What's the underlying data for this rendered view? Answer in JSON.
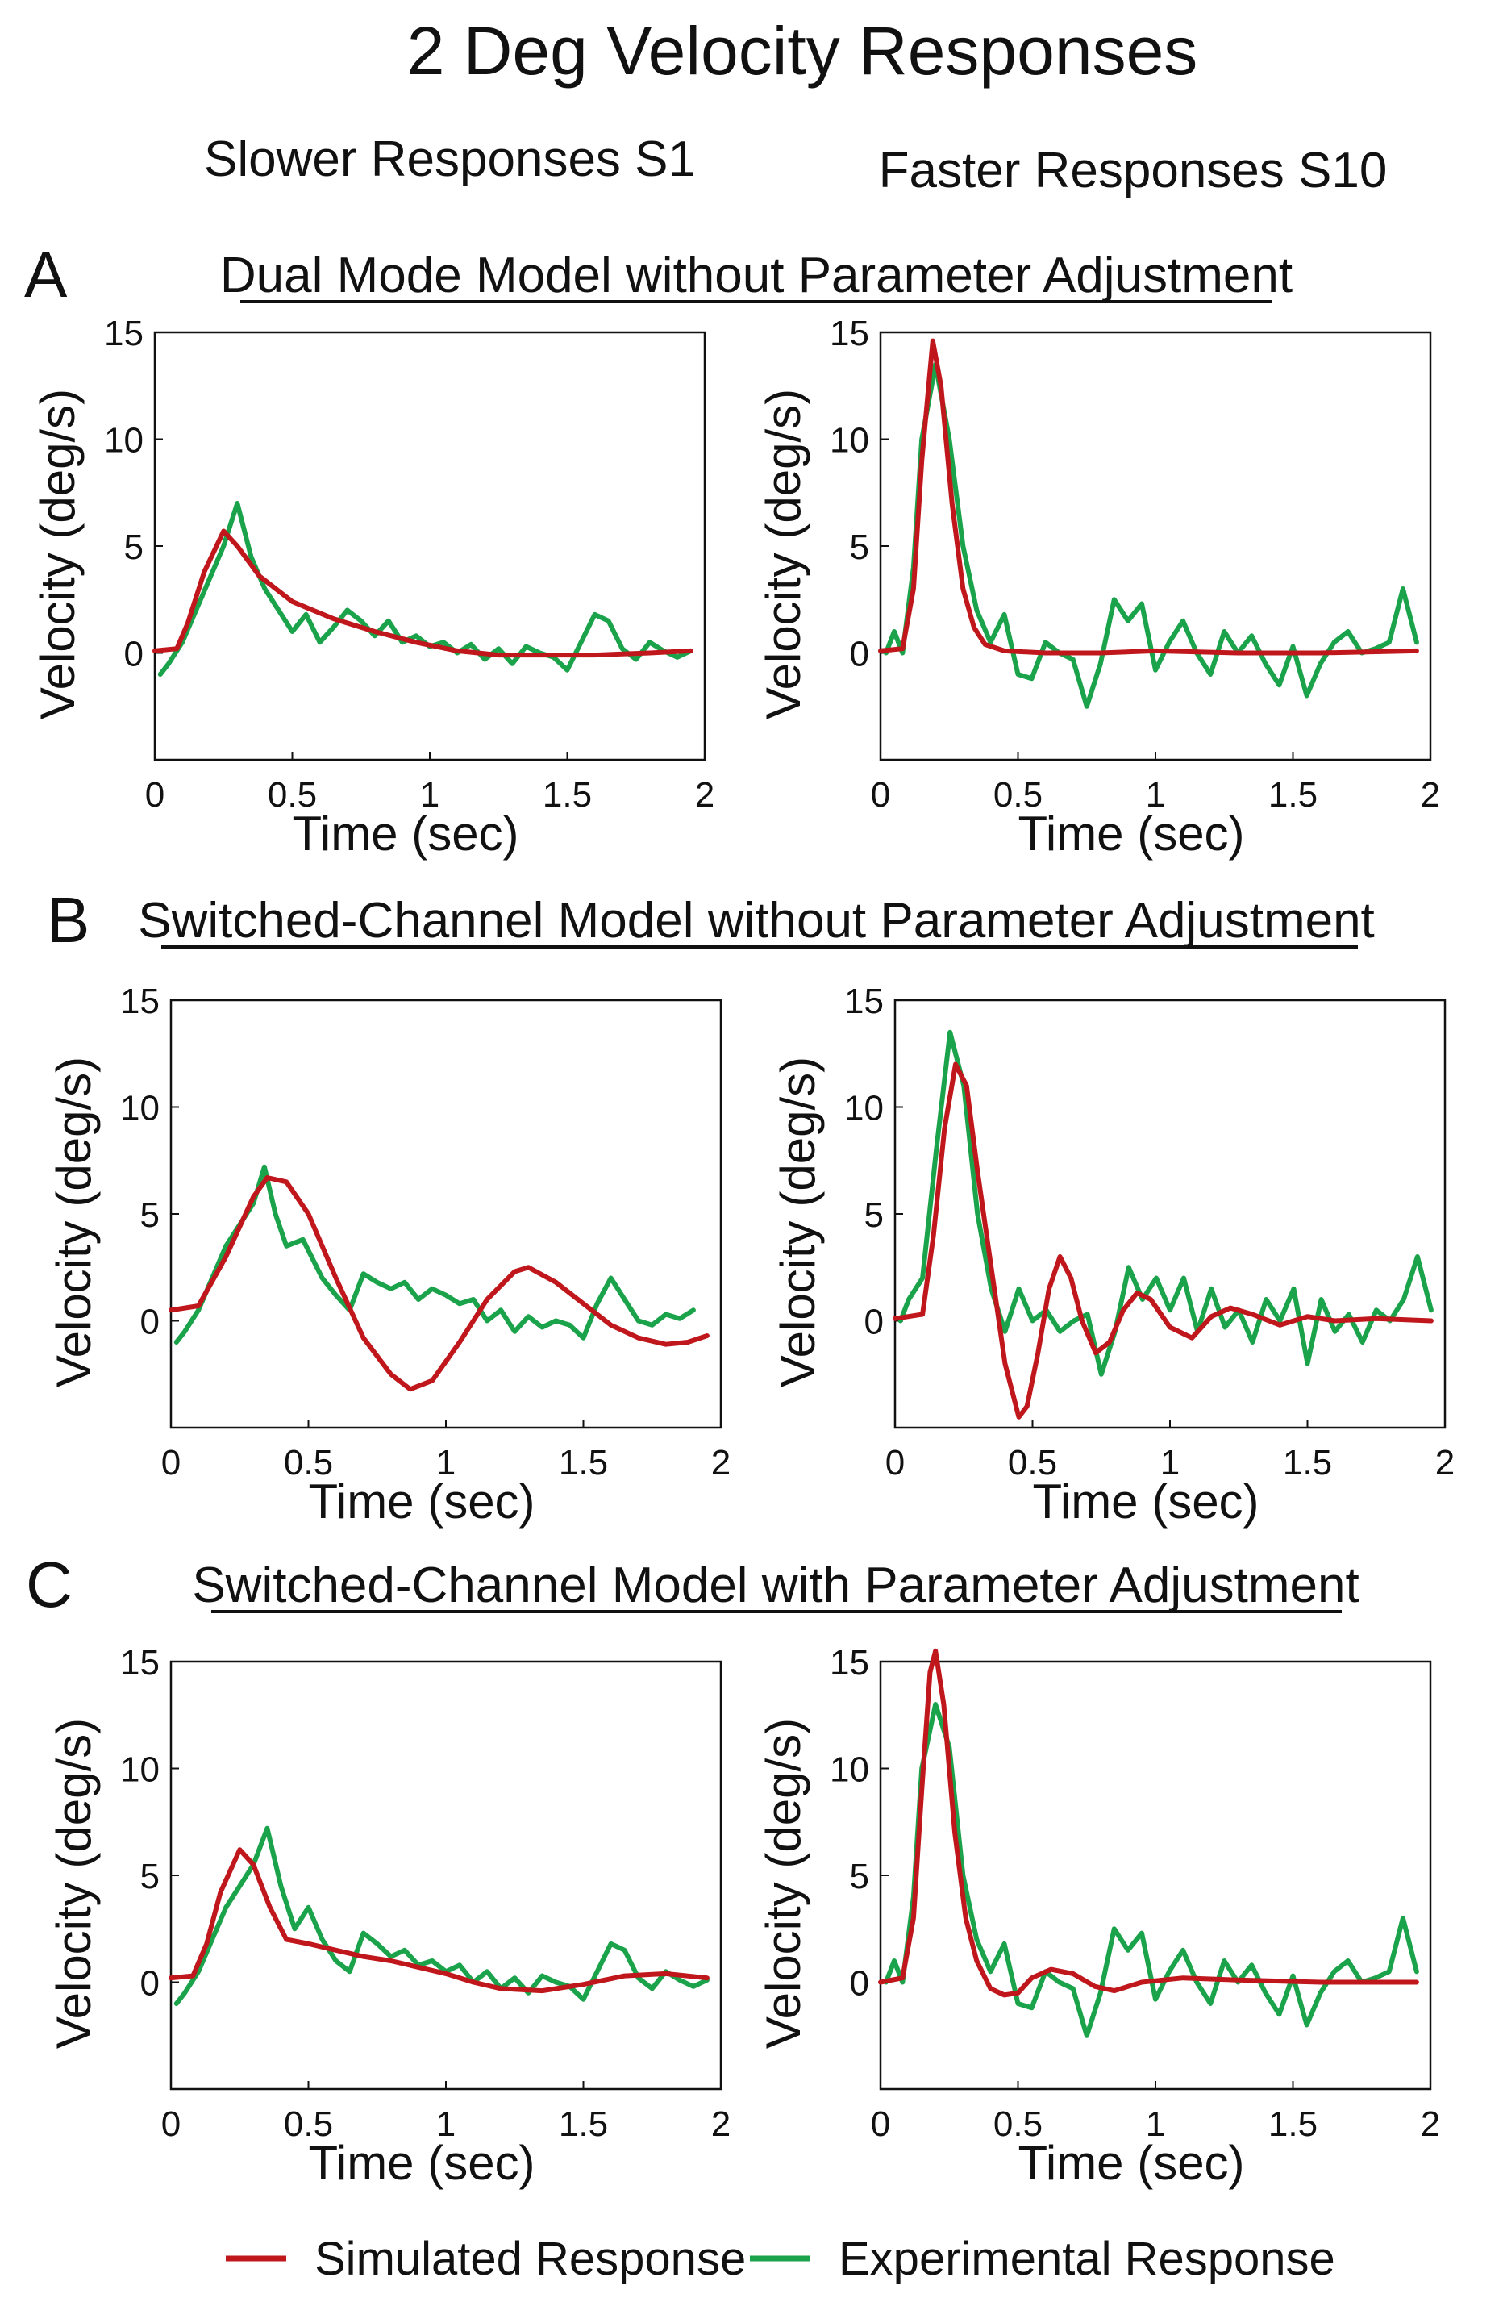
{
  "figure": {
    "title": "2 Deg Velocity Responses",
    "column_titles": [
      "Slower Responses S1",
      "Faster Responses S10"
    ],
    "legend": [
      {
        "label": "Simulated Response",
        "color": "#c0171c"
      },
      {
        "label": "Experimental Response",
        "color": "#1aa34a"
      }
    ]
  },
  "panels": [
    {
      "letter": "A",
      "title": "Dual Mode Model without Parameter Adjustment"
    },
    {
      "letter": "B",
      "title": "Switched-Channel  Model without Parameter Adjustment"
    },
    {
      "letter": "C",
      "title": "Switched-Channel  Model with Parameter Adjustment"
    }
  ],
  "chart_data": [
    {
      "type": "line",
      "panel": "A",
      "subject": "S1",
      "xlabel": "Time (sec)",
      "ylabel": "Velocity (deg/s)",
      "xlim": [
        0,
        2
      ],
      "ylim": [
        -5,
        15
      ],
      "xticks": [
        0,
        0.5,
        1,
        1.5,
        2
      ],
      "xtick_labels": [
        "0",
        "0.5",
        "1",
        "1.5",
        "2"
      ],
      "yticks": [
        0,
        5,
        10,
        15
      ],
      "ytick_labels": [
        "0",
        "5",
        "10",
        "15"
      ],
      "series": [
        {
          "name": "Simulated Response",
          "color": "#c0171c",
          "x": [
            0,
            0.08,
            0.12,
            0.18,
            0.25,
            0.3,
            0.38,
            0.5,
            0.65,
            0.8,
            0.95,
            1.1,
            1.25,
            1.4,
            1.6,
            1.8,
            1.95
          ],
          "y": [
            0.1,
            0.2,
            1.4,
            3.8,
            5.7,
            5.0,
            3.6,
            2.4,
            1.6,
            1.0,
            0.5,
            0.1,
            -0.1,
            -0.1,
            -0.1,
            0.0,
            0.1
          ]
        },
        {
          "name": "Experimental Response",
          "color": "#1aa34a",
          "x": [
            0.02,
            0.05,
            0.1,
            0.15,
            0.2,
            0.25,
            0.3,
            0.35,
            0.4,
            0.45,
            0.5,
            0.55,
            0.6,
            0.65,
            0.7,
            0.75,
            0.8,
            0.85,
            0.9,
            0.95,
            1.0,
            1.05,
            1.1,
            1.15,
            1.2,
            1.25,
            1.3,
            1.35,
            1.4,
            1.45,
            1.5,
            1.55,
            1.6,
            1.65,
            1.7,
            1.75,
            1.8,
            1.85,
            1.9,
            1.95
          ],
          "y": [
            -1.0,
            -0.5,
            0.5,
            2.0,
            3.5,
            5.0,
            7.0,
            4.5,
            3.0,
            2.0,
            1.0,
            1.8,
            0.5,
            1.2,
            2.0,
            1.5,
            0.8,
            1.5,
            0.5,
            0.8,
            0.3,
            0.5,
            0.0,
            0.4,
            -0.3,
            0.2,
            -0.5,
            0.3,
            0.0,
            -0.2,
            -0.8,
            0.5,
            1.8,
            1.5,
            0.2,
            -0.3,
            0.5,
            0.1,
            -0.2,
            0.1
          ]
        }
      ]
    },
    {
      "type": "line",
      "panel": "A",
      "subject": "S10",
      "xlabel": "Time (sec)",
      "ylabel": "Velocity (deg/s)",
      "xlim": [
        0,
        2
      ],
      "ylim": [
        -5,
        15
      ],
      "xticks": [
        0,
        0.5,
        1,
        1.5,
        2
      ],
      "xtick_labels": [
        "0",
        "0.5",
        "1",
        "1.5",
        "2"
      ],
      "yticks": [
        0,
        5,
        10,
        15
      ],
      "ytick_labels": [
        "0",
        "5",
        "10",
        "15"
      ],
      "series": [
        {
          "name": "Simulated Response",
          "color": "#c0171c",
          "x": [
            0,
            0.08,
            0.12,
            0.15,
            0.19,
            0.22,
            0.26,
            0.3,
            0.34,
            0.38,
            0.45,
            0.6,
            0.8,
            1.0,
            1.3,
            1.6,
            1.95
          ],
          "y": [
            0.1,
            0.2,
            3.0,
            9.0,
            14.6,
            12.5,
            7.0,
            3.0,
            1.2,
            0.4,
            0.1,
            0.0,
            0.0,
            0.1,
            0.0,
            0.0,
            0.1
          ]
        },
        {
          "name": "Experimental Response",
          "color": "#1aa34a",
          "x": [
            0.02,
            0.05,
            0.08,
            0.12,
            0.15,
            0.2,
            0.25,
            0.3,
            0.35,
            0.4,
            0.45,
            0.5,
            0.55,
            0.6,
            0.65,
            0.7,
            0.75,
            0.8,
            0.85,
            0.9,
            0.95,
            1.0,
            1.05,
            1.1,
            1.15,
            1.2,
            1.25,
            1.3,
            1.35,
            1.4,
            1.45,
            1.5,
            1.55,
            1.6,
            1.65,
            1.7,
            1.75,
            1.8,
            1.85,
            1.9,
            1.95
          ],
          "y": [
            0.0,
            1.0,
            0.0,
            4.0,
            10.0,
            13.5,
            10.0,
            5.0,
            2.0,
            0.5,
            1.8,
            -1.0,
            -1.2,
            0.5,
            0.0,
            -0.3,
            -2.5,
            -0.5,
            2.5,
            1.5,
            2.3,
            -0.8,
            0.5,
            1.5,
            0.0,
            -1.0,
            1.0,
            0.0,
            0.8,
            -0.5,
            -1.5,
            0.3,
            -2.0,
            -0.5,
            0.5,
            1.0,
            0.0,
            0.2,
            0.5,
            3.0,
            0.5
          ]
        }
      ]
    },
    {
      "type": "line",
      "panel": "B",
      "subject": "S1",
      "xlabel": "Time (sec)",
      "ylabel": "Velocity (deg/s)",
      "xlim": [
        0,
        2
      ],
      "ylim": [
        -5,
        15
      ],
      "xticks": [
        0,
        0.5,
        1,
        1.5,
        2
      ],
      "xtick_labels": [
        "0",
        "0.5",
        "1",
        "1.5",
        "2"
      ],
      "yticks": [
        0,
        5,
        10,
        15
      ],
      "ytick_labels": [
        "0",
        "5",
        "10",
        "15"
      ],
      "series": [
        {
          "name": "Simulated Response",
          "color": "#c0171c",
          "x": [
            0,
            0.1,
            0.2,
            0.3,
            0.35,
            0.42,
            0.5,
            0.6,
            0.7,
            0.8,
            0.87,
            0.95,
            1.05,
            1.15,
            1.25,
            1.3,
            1.4,
            1.5,
            1.6,
            1.7,
            1.8,
            1.88,
            1.95
          ],
          "y": [
            0.5,
            0.7,
            3.0,
            5.8,
            6.7,
            6.5,
            5.0,
            2.0,
            -0.8,
            -2.5,
            -3.2,
            -2.8,
            -1.0,
            1.0,
            2.3,
            2.5,
            1.8,
            0.8,
            -0.2,
            -0.8,
            -1.1,
            -1.0,
            -0.7
          ]
        },
        {
          "name": "Experimental Response",
          "color": "#1aa34a",
          "x": [
            0.02,
            0.05,
            0.1,
            0.15,
            0.2,
            0.25,
            0.3,
            0.34,
            0.38,
            0.42,
            0.48,
            0.55,
            0.6,
            0.65,
            0.7,
            0.75,
            0.8,
            0.85,
            0.9,
            0.95,
            1.0,
            1.05,
            1.1,
            1.15,
            1.2,
            1.25,
            1.3,
            1.35,
            1.4,
            1.45,
            1.5,
            1.55,
            1.6,
            1.65,
            1.7,
            1.75,
            1.8,
            1.85,
            1.9
          ],
          "y": [
            -1.0,
            -0.5,
            0.5,
            2.0,
            3.5,
            4.5,
            5.5,
            7.2,
            5.0,
            3.5,
            3.8,
            2.0,
            1.2,
            0.5,
            2.2,
            1.8,
            1.5,
            1.8,
            1.0,
            1.5,
            1.2,
            0.8,
            1.0,
            0.0,
            0.5,
            -0.5,
            0.2,
            -0.3,
            0.0,
            -0.2,
            -0.8,
            0.8,
            2.0,
            1.0,
            0.0,
            -0.2,
            0.3,
            0.1,
            0.5
          ]
        }
      ]
    },
    {
      "type": "line",
      "panel": "B",
      "subject": "S10",
      "xlabel": "Time (sec)",
      "ylabel": "Velocity (deg/s)",
      "xlim": [
        0,
        2
      ],
      "ylim": [
        -5,
        15
      ],
      "xticks": [
        0,
        0.5,
        1,
        1.5,
        2
      ],
      "xtick_labels": [
        "0",
        "0.5",
        "1",
        "1.5",
        "2"
      ],
      "yticks": [
        0,
        5,
        10,
        15
      ],
      "ytick_labels": [
        "0",
        "5",
        "10",
        "15"
      ],
      "series": [
        {
          "name": "Simulated Response",
          "color": "#c0171c",
          "x": [
            0,
            0.1,
            0.14,
            0.18,
            0.22,
            0.26,
            0.3,
            0.35,
            0.4,
            0.45,
            0.48,
            0.52,
            0.56,
            0.6,
            0.64,
            0.68,
            0.73,
            0.78,
            0.83,
            0.88,
            0.93,
            1.0,
            1.08,
            1.15,
            1.22,
            1.3,
            1.4,
            1.5,
            1.6,
            1.75,
            1.95
          ],
          "y": [
            0.1,
            0.3,
            4.0,
            9.0,
            12.0,
            11.0,
            7.0,
            2.5,
            -2.0,
            -4.5,
            -4.0,
            -1.5,
            1.5,
            3.0,
            2.0,
            0.0,
            -1.5,
            -1.0,
            0.5,
            1.3,
            1.0,
            -0.3,
            -0.8,
            0.2,
            0.6,
            0.3,
            -0.2,
            0.2,
            0.0,
            0.1,
            0.0
          ]
        },
        {
          "name": "Experimental Response",
          "color": "#1aa34a",
          "x": [
            0.02,
            0.05,
            0.1,
            0.15,
            0.2,
            0.25,
            0.3,
            0.35,
            0.4,
            0.45,
            0.5,
            0.55,
            0.6,
            0.65,
            0.7,
            0.75,
            0.8,
            0.85,
            0.9,
            0.95,
            1.0,
            1.05,
            1.1,
            1.15,
            1.2,
            1.25,
            1.3,
            1.35,
            1.4,
            1.45,
            1.5,
            1.55,
            1.6,
            1.65,
            1.7,
            1.75,
            1.8,
            1.85,
            1.9,
            1.95
          ],
          "y": [
            0.0,
            1.0,
            2.0,
            8.0,
            13.5,
            11.0,
            5.0,
            1.5,
            -0.5,
            1.5,
            0.0,
            0.5,
            -0.5,
            0.0,
            0.3,
            -2.5,
            -0.5,
            2.5,
            1.0,
            2.0,
            0.5,
            2.0,
            -0.5,
            1.5,
            -0.3,
            0.5,
            -1.0,
            1.0,
            0.0,
            1.5,
            -2.0,
            1.0,
            -0.5,
            0.3,
            -1.0,
            0.5,
            0.0,
            1.0,
            3.0,
            0.5
          ]
        }
      ]
    },
    {
      "type": "line",
      "panel": "C",
      "subject": "S1",
      "xlabel": "Time (sec)",
      "ylabel": "Velocity (deg/s)",
      "xlim": [
        0,
        2
      ],
      "ylim": [
        -5,
        15
      ],
      "xticks": [
        0,
        0.5,
        1,
        1.5,
        2
      ],
      "xtick_labels": [
        "0",
        "0.5",
        "1",
        "1.5",
        "2"
      ],
      "yticks": [
        0,
        5,
        10,
        15
      ],
      "ytick_labels": [
        "0",
        "5",
        "10",
        "15"
      ],
      "series": [
        {
          "name": "Simulated Response",
          "color": "#c0171c",
          "x": [
            0,
            0.08,
            0.13,
            0.18,
            0.25,
            0.3,
            0.36,
            0.42,
            0.5,
            0.6,
            0.7,
            0.8,
            0.9,
            1.0,
            1.1,
            1.2,
            1.35,
            1.5,
            1.65,
            1.8,
            1.95
          ],
          "y": [
            0.2,
            0.3,
            1.8,
            4.2,
            6.2,
            5.5,
            3.5,
            2.0,
            1.8,
            1.5,
            1.2,
            1.0,
            0.7,
            0.4,
            0.0,
            -0.3,
            -0.4,
            -0.1,
            0.3,
            0.4,
            0.2
          ]
        },
        {
          "name": "Experimental Response",
          "color": "#1aa34a",
          "x": [
            0.02,
            0.05,
            0.1,
            0.15,
            0.2,
            0.25,
            0.3,
            0.35,
            0.4,
            0.45,
            0.5,
            0.55,
            0.6,
            0.65,
            0.7,
            0.75,
            0.8,
            0.85,
            0.9,
            0.95,
            1.0,
            1.05,
            1.1,
            1.15,
            1.2,
            1.25,
            1.3,
            1.35,
            1.4,
            1.45,
            1.5,
            1.55,
            1.6,
            1.65,
            1.7,
            1.75,
            1.8,
            1.85,
            1.9,
            1.95
          ],
          "y": [
            -1.0,
            -0.5,
            0.5,
            2.0,
            3.5,
            4.5,
            5.5,
            7.2,
            4.5,
            2.5,
            3.5,
            2.0,
            1.0,
            0.5,
            2.3,
            1.8,
            1.2,
            1.5,
            0.8,
            1.0,
            0.5,
            0.8,
            0.0,
            0.5,
            -0.3,
            0.2,
            -0.5,
            0.3,
            0.0,
            -0.2,
            -0.8,
            0.5,
            1.8,
            1.5,
            0.2,
            -0.3,
            0.5,
            0.1,
            -0.2,
            0.1
          ]
        }
      ]
    },
    {
      "type": "line",
      "panel": "C",
      "subject": "S10",
      "xlabel": "Time (sec)",
      "ylabel": "Velocity (deg/s)",
      "xlim": [
        0,
        2
      ],
      "ylim": [
        -5,
        15
      ],
      "xticks": [
        0,
        0.5,
        1,
        1.5,
        2
      ],
      "xtick_labels": [
        "0",
        "0.5",
        "1",
        "1.5",
        "2"
      ],
      "yticks": [
        0,
        5,
        10,
        15
      ],
      "ytick_labels": [
        "0",
        "5",
        "10",
        "15"
      ],
      "series": [
        {
          "name": "Simulated Response",
          "color": "#c0171c",
          "x": [
            0,
            0.08,
            0.12,
            0.15,
            0.18,
            0.2,
            0.23,
            0.27,
            0.31,
            0.35,
            0.4,
            0.45,
            0.5,
            0.55,
            0.62,
            0.7,
            0.78,
            0.85,
            0.95,
            1.1,
            1.3,
            1.6,
            1.95
          ],
          "y": [
            0.0,
            0.2,
            3.0,
            9.0,
            14.5,
            15.5,
            13.0,
            7.0,
            3.0,
            1.0,
            -0.3,
            -0.6,
            -0.5,
            0.2,
            0.6,
            0.4,
            -0.2,
            -0.4,
            0.0,
            0.2,
            0.1,
            0.0,
            0.0
          ]
        },
        {
          "name": "Experimental Response",
          "color": "#1aa34a",
          "x": [
            0.02,
            0.05,
            0.08,
            0.12,
            0.15,
            0.2,
            0.25,
            0.3,
            0.35,
            0.4,
            0.45,
            0.5,
            0.55,
            0.6,
            0.65,
            0.7,
            0.75,
            0.8,
            0.85,
            0.9,
            0.95,
            1.0,
            1.05,
            1.1,
            1.15,
            1.2,
            1.25,
            1.3,
            1.35,
            1.4,
            1.45,
            1.5,
            1.55,
            1.6,
            1.65,
            1.7,
            1.75,
            1.8,
            1.85,
            1.9,
            1.95
          ],
          "y": [
            0.0,
            1.0,
            0.0,
            4.0,
            10.0,
            13.0,
            11.0,
            5.0,
            2.0,
            0.5,
            1.8,
            -1.0,
            -1.2,
            0.5,
            0.0,
            -0.3,
            -2.5,
            -0.5,
            2.5,
            1.5,
            2.3,
            -0.8,
            0.5,
            1.5,
            0.0,
            -1.0,
            1.0,
            0.0,
            0.8,
            -0.5,
            -1.5,
            0.3,
            -2.0,
            -0.5,
            0.5,
            1.0,
            0.0,
            0.2,
            0.5,
            3.0,
            0.5
          ]
        }
      ]
    }
  ]
}
